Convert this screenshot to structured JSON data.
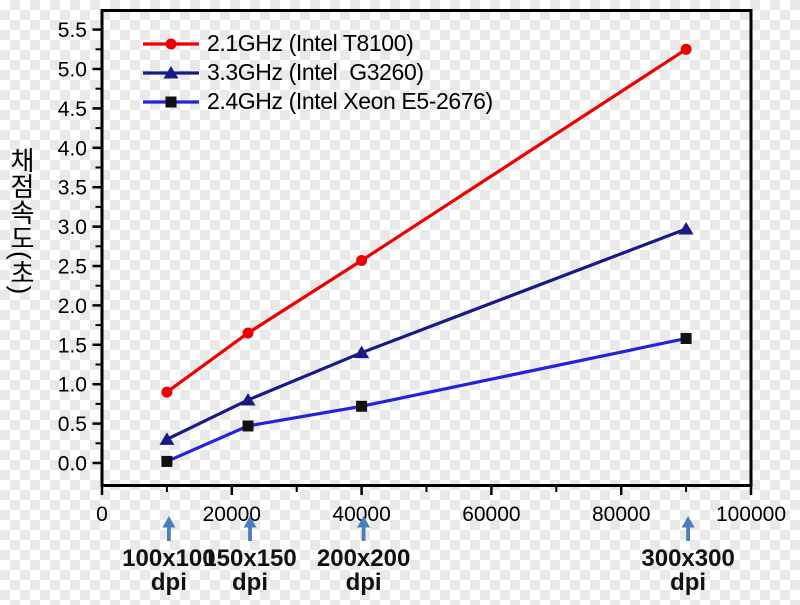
{
  "page": {
    "background": "transparency-checkerboard",
    "checker_light": "#ffffff",
    "checker_dark": "#e9e9e9"
  },
  "chart_data": {
    "type": "line",
    "title": "",
    "xlabel": "",
    "ylabel": "채점속도(초)",
    "xlim": [
      0,
      100000
    ],
    "ylim": [
      -0.29,
      5.74
    ],
    "grid": false,
    "legend_position": "top-left-inside",
    "axis_color": "#000000",
    "x": [
      10000,
      22500,
      40000,
      90000
    ],
    "series": [
      {
        "name": "2.1GHz (Intel T8100)",
        "color": "#ee0000",
        "marker": "circle",
        "marker_color": "#ee0000",
        "values": [
          0.9,
          1.65,
          2.57,
          5.25
        ]
      },
      {
        "name": "3.3GHz (Intel  G3260)",
        "color": "#1a1a86",
        "marker": "triangle",
        "marker_color": "#1a1a86",
        "values": [
          0.3,
          0.8,
          1.4,
          2.97
        ]
      },
      {
        "name": "2.4GHz (Intel Xeon E5-2676)",
        "color": "#2323dd",
        "marker": "square",
        "marker_color": "#111111",
        "values": [
          0.02,
          0.47,
          0.72,
          1.58
        ]
      }
    ],
    "x_ticks": {
      "major": [
        {
          "value": 0,
          "label": "0"
        },
        {
          "value": 20000,
          "label": "20000"
        },
        {
          "value": 40000,
          "label": "40000"
        },
        {
          "value": 60000,
          "label": "60000"
        },
        {
          "value": 80000,
          "label": "80000"
        },
        {
          "value": 100000,
          "label": "100000"
        }
      ],
      "minor": [
        10000,
        30000,
        50000,
        70000,
        90000
      ]
    },
    "y_ticks": {
      "major": [
        {
          "value": 0.0,
          "label": "0.0"
        },
        {
          "value": 0.5,
          "label": "0.5"
        },
        {
          "value": 1.0,
          "label": "1.0"
        },
        {
          "value": 1.5,
          "label": "1.5"
        },
        {
          "value": 2.0,
          "label": "2.0"
        },
        {
          "value": 2.5,
          "label": "2.5"
        },
        {
          "value": 3.0,
          "label": "3.0"
        },
        {
          "value": 3.5,
          "label": "3.5"
        },
        {
          "value": 4.0,
          "label": "4.0"
        },
        {
          "value": 4.5,
          "label": "4.5"
        },
        {
          "value": 5.0,
          "label": "5.0"
        },
        {
          "value": 5.5,
          "label": "5.5"
        }
      ],
      "minor": [
        0.25,
        0.75,
        1.25,
        1.75,
        2.25,
        2.75,
        3.25,
        3.75,
        4.25,
        4.75,
        5.25
      ]
    },
    "annotations": [
      {
        "x": 10000,
        "line1": "100x100",
        "line2": "dpi"
      },
      {
        "x": 22500,
        "line1": "150x150",
        "line2": "dpi"
      },
      {
        "x": 40000,
        "line1": "200x200",
        "line2": "dpi"
      },
      {
        "x": 90000,
        "line1": "300x300",
        "line2": "dpi"
      }
    ],
    "annotation_arrow_color": "#4a7ebc",
    "annotation_text_color": "#111111"
  }
}
